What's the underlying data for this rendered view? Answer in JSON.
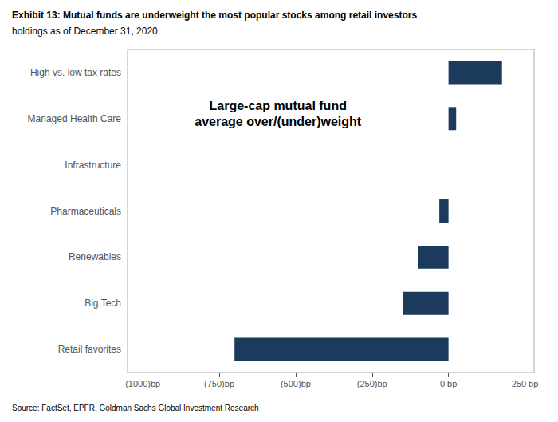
{
  "chart_data": {
    "type": "bar",
    "orientation": "horizontal",
    "title": "Exhibit 13: Mutual funds are underweight the most popular stocks among retail investors",
    "subtitle": "holdings as of December 31, 2020",
    "annotation": [
      "Large-cap mutual fund",
      "average over/(under)weight"
    ],
    "source": "Source: FactSet, EPFR, Goldman Sachs Global Investment Research",
    "categories": [
      "Retail favorites",
      "Big Tech",
      "Renewables",
      "Pharmaceuticals",
      "Infrastructure",
      "Managed Health Care",
      "High vs. low tax rates"
    ],
    "values": [
      -700,
      -150,
      -100,
      -30,
      0,
      25,
      175
    ],
    "color": "#1b3a5c",
    "xlim": [
      -1050,
      280
    ],
    "xticks": [
      {
        "value": -1000,
        "label": "(1000)bp"
      },
      {
        "value": -750,
        "label": "(750)bp"
      },
      {
        "value": -500,
        "label": "(500)bp"
      },
      {
        "value": -250,
        "label": "(250)bp"
      },
      {
        "value": 0,
        "label": "0 bp"
      },
      {
        "value": 250,
        "label": "250 bp"
      }
    ],
    "grid": false
  }
}
